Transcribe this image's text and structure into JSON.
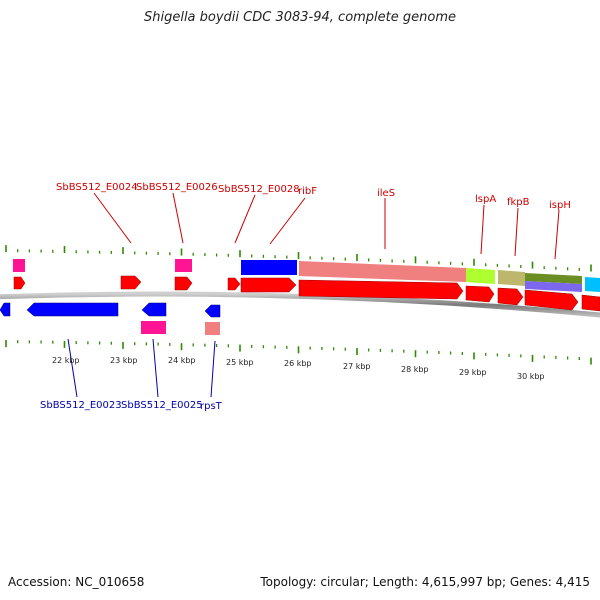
{
  "title": "Shigella boydii CDC 3083-94, complete genome",
  "accession": "Accession: NC_010658",
  "summary": "Topology: circular; Length: 4,615,997 bp; Genes: 4,415",
  "scale_labels": [
    "22 kbp",
    "23 kbp",
    "24 kbp",
    "25 kbp",
    "26 kbp",
    "27 kbp",
    "28 kbp",
    "29 kbp",
    "30 kbp"
  ],
  "top_labels": [
    "SbBS512_E0024",
    "SbBS512_E0026",
    "SbBS512_E0028",
    "ribF",
    "ileS",
    "lspA",
    "fkpB",
    "ispH"
  ],
  "bottom_labels": [
    "SbBS512_E0023",
    "SbBS512_E0025",
    "rpsT"
  ],
  "colors": {
    "forward_cds": "#ff0000",
    "reverse_cds": "#0000ff",
    "pink": "#ff1493",
    "salmon": "#f08080",
    "tick": "#2e8b00",
    "backbone": "#888888"
  }
}
